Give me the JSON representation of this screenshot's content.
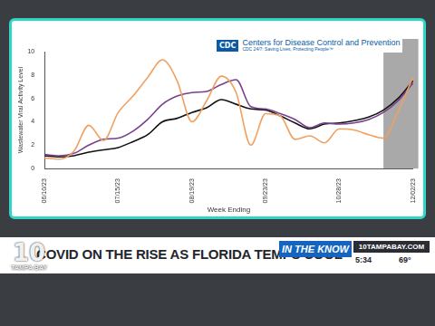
{
  "chart_data": {
    "type": "line",
    "logo_text": "CDC",
    "header": "Centers for Disease Control and Prevention",
    "tagline": "CDC 24/7: Saving Lives, Protecting People™",
    "x_label": "Week Ending",
    "y_label": "Wastewater Viral Activity Level",
    "categories": [
      "06/10/23",
      null,
      null,
      null,
      null,
      "07/15/23",
      null,
      null,
      null,
      null,
      "08/19/23",
      null,
      null,
      null,
      null,
      "09/23/23",
      null,
      null,
      null,
      null,
      "10/28/23",
      null,
      null,
      null,
      null,
      "12/02/23"
    ],
    "series": [
      {
        "color": "#f0a060",
        "values": [
          0.9,
          0.8,
          1.5,
          3.7,
          2.4,
          4.8,
          6.2,
          7.8,
          9.3,
          7.5,
          4.0,
          5.8,
          7.9,
          6.5,
          2.0,
          4.7,
          4.5,
          2.5,
          2.8,
          2.2,
          3.4,
          3.3,
          2.9,
          2.6,
          4.9,
          7.8
        ]
      },
      {
        "color": "#7a3f8f",
        "values": [
          1.2,
          1.1,
          1.3,
          2.0,
          2.5,
          2.6,
          3.2,
          4.2,
          5.5,
          6.2,
          6.5,
          6.6,
          7.2,
          7.6,
          5.3,
          5.1,
          4.7,
          4.2,
          3.5,
          3.9,
          3.8,
          3.9,
          4.2,
          4.8,
          5.8,
          7.3
        ]
      },
      {
        "color": "#111111",
        "values": [
          1.1,
          1.0,
          1.1,
          1.4,
          1.6,
          1.8,
          2.3,
          2.9,
          4.0,
          4.3,
          4.8,
          5.2,
          5.9,
          5.5,
          5.1,
          5.0,
          4.5,
          3.9,
          3.4,
          3.8,
          3.9,
          4.1,
          4.4,
          5.0,
          6.0,
          7.5
        ]
      }
    ],
    "ylim": [
      0,
      10
    ],
    "yticks": [
      0,
      2,
      4,
      6,
      8,
      10
    ],
    "grid": false
  },
  "banner": {
    "station_number": "10",
    "station_name": "TAMPA BAY",
    "headline": "COVID ON THE RISE AS FLORIDA TEMPS COOL",
    "segment": "IN THE KNOW",
    "website": "10TAMPABAY.COM",
    "time": "5:34",
    "temperature": "69°"
  }
}
